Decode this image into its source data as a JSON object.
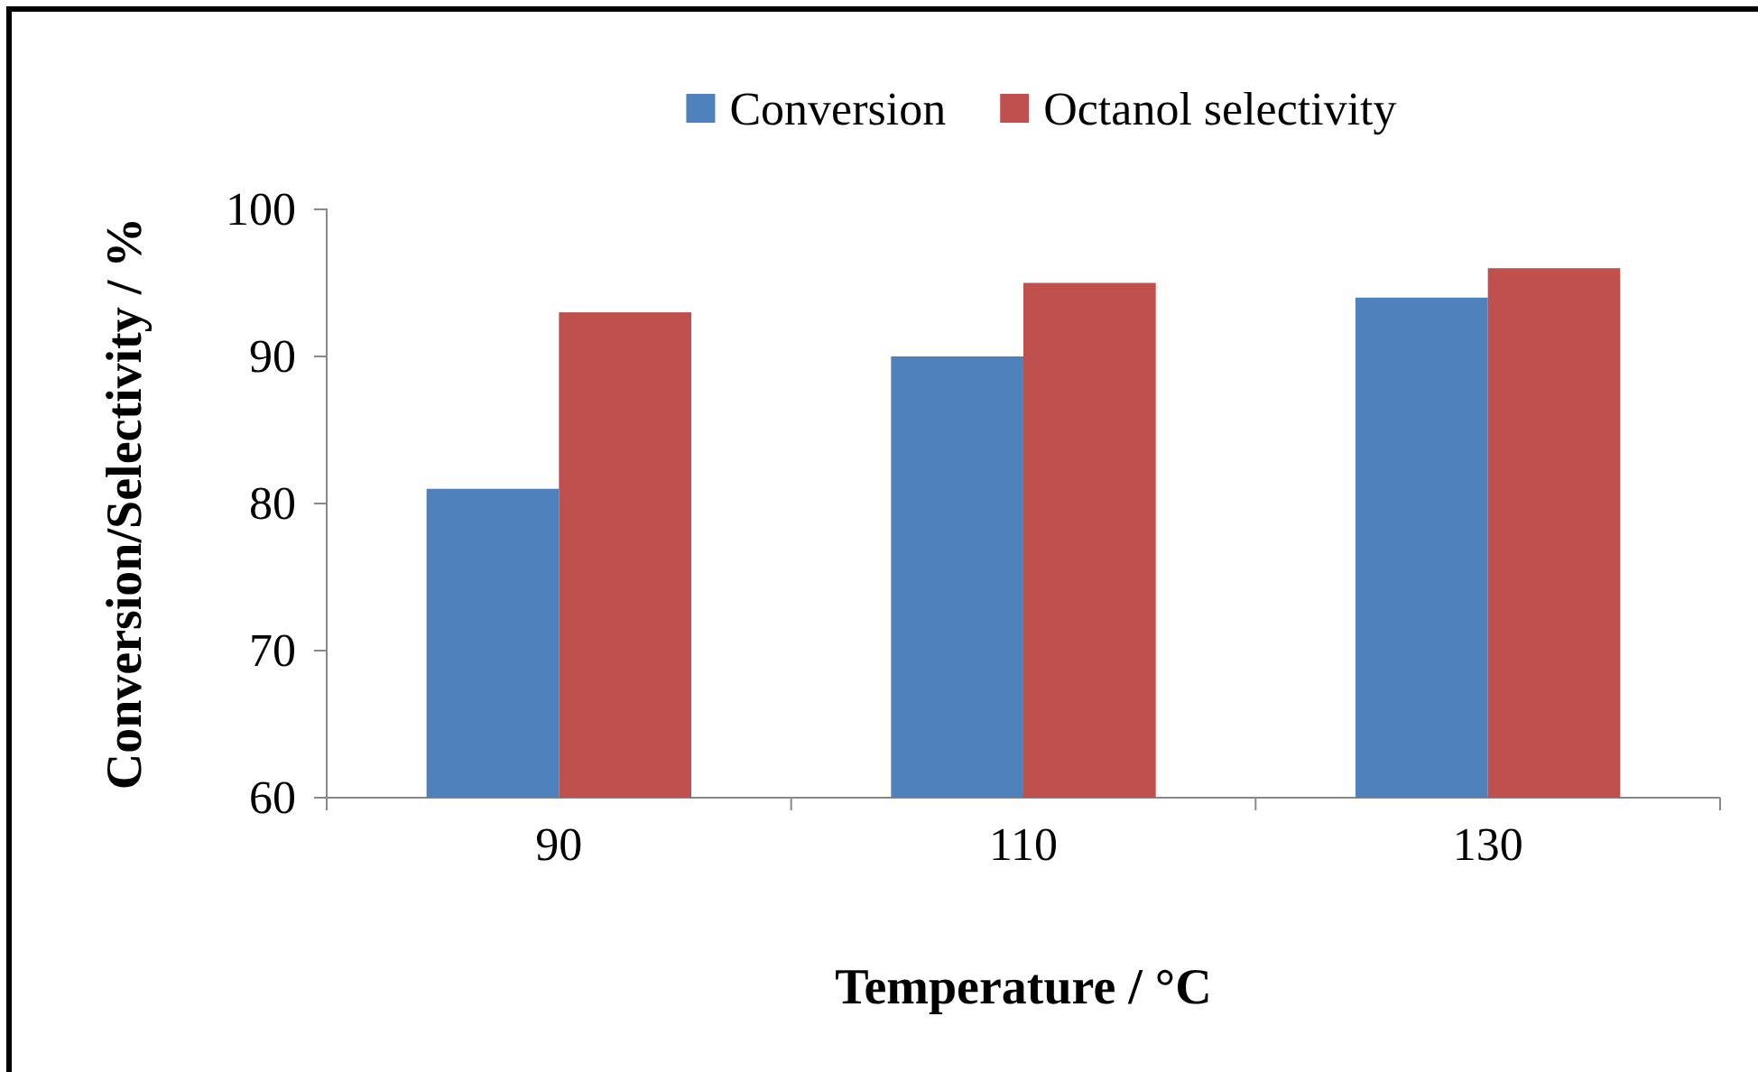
{
  "chart_data": {
    "type": "bar",
    "xlabel": "Temperature / °C",
    "ylabel": "Conversion/Selectivity / %",
    "categories": [
      "90",
      "110",
      "130"
    ],
    "series": [
      {
        "name": "Conversion",
        "color": "#4f81bd",
        "values": [
          81,
          90,
          94
        ]
      },
      {
        "name": "Octanol selectivity",
        "color": "#c0504d",
        "values": [
          93,
          95,
          96
        ]
      }
    ],
    "ylim": [
      60,
      100
    ],
    "yticks": [
      60,
      70,
      80,
      90,
      100
    ],
    "grid": false,
    "legend": "top"
  }
}
